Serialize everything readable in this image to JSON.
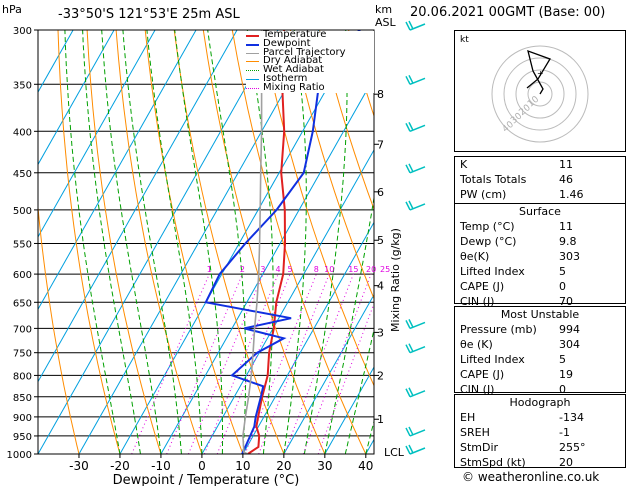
{
  "header": {
    "hpa_label": "hPa",
    "location": "-33°50'S  121°53'E  25m  ASL",
    "km_label": "km",
    "asl_label": "ASL",
    "datetime": "20.06.2021  00GMT  (Base: 00)"
  },
  "legend": [
    {
      "label": "Temperature",
      "color": "#e02020"
    },
    {
      "label": "Dewpoint",
      "color": "#1030e0"
    },
    {
      "label": "Parcel Trajectory",
      "color": "#a0a0a0"
    },
    {
      "label": "Dry Adiabat",
      "color": "#ff8c00"
    },
    {
      "label": "Wet Adiabat",
      "color": "#00a000"
    },
    {
      "label": "Isotherm",
      "color": "#00a0e0"
    },
    {
      "label": "Mixing Ratio",
      "color": "#e000e0"
    }
  ],
  "colors": {
    "temperature": "#e02020",
    "dewpoint": "#1030e0",
    "parcel": "#a0a0a0",
    "dry_adiabat": "#ff8c00",
    "wet_adiabat": "#00a000",
    "isotherm": "#00a0e0",
    "mixing_ratio": "#e000e0",
    "wind_barb": "#00c0c0"
  },
  "chart_data": {
    "type": "line",
    "xlabel": "Dewpoint / Temperature (°C)",
    "ylabel_right": "Mixing Ratio (g/kg)",
    "x_ticks": [
      -30,
      -20,
      -10,
      0,
      10,
      20,
      30,
      40
    ],
    "pressure_ticks": [
      300,
      350,
      400,
      450,
      500,
      550,
      600,
      650,
      700,
      750,
      800,
      850,
      900,
      950,
      1000
    ],
    "height_km_ticks": [
      {
        "km": "1",
        "p": 906
      },
      {
        "km": "2",
        "p": 800
      },
      {
        "km": "3",
        "p": 708
      },
      {
        "km": "4",
        "p": 620
      },
      {
        "km": "5",
        "p": 545
      },
      {
        "km": "6",
        "p": 475
      },
      {
        "km": "7",
        "p": 415
      },
      {
        "km": "8",
        "p": 360
      }
    ],
    "lcl_label": "LCL",
    "lcl_pressure": 995,
    "mixing_ratio_labels": [
      "1",
      "2",
      "3",
      "4",
      "5",
      "8",
      "10",
      "15",
      "20",
      "25"
    ],
    "series": [
      {
        "name": "Temperature",
        "points": [
          [
            1000,
            11.2
          ],
          [
            980,
            12.8
          ],
          [
            950,
            11.5
          ],
          [
            925,
            9.5
          ],
          [
            900,
            8.6
          ],
          [
            850,
            6.8
          ],
          [
            800,
            5.2
          ],
          [
            750,
            2.4
          ],
          [
            700,
            0.2
          ],
          [
            650,
            -2.8
          ],
          [
            600,
            -5.0
          ],
          [
            550,
            -8.8
          ],
          [
            500,
            -13.5
          ],
          [
            450,
            -19.5
          ],
          [
            400,
            -24.5
          ],
          [
            350,
            -31.5
          ],
          [
            300,
            -38.5
          ]
        ]
      },
      {
        "name": "Dewpoint",
        "points": [
          [
            1000,
            9.8
          ],
          [
            980,
            9.6
          ],
          [
            950,
            9.3
          ],
          [
            925,
            9.0
          ],
          [
            900,
            8.0
          ],
          [
            850,
            6.5
          ],
          [
            825,
            5.6
          ],
          [
            800,
            -3.5
          ],
          [
            750,
            -0.5
          ],
          [
            720,
            4.0
          ],
          [
            700,
            -7.0
          ],
          [
            680,
            3.0
          ],
          [
            650,
            -20.0
          ],
          [
            600,
            -20.5
          ],
          [
            550,
            -18.5
          ],
          [
            500,
            -15.5
          ],
          [
            450,
            -14.0
          ],
          [
            400,
            -17.5
          ],
          [
            350,
            -22.5
          ],
          [
            330,
            -25.0
          ],
          [
            300,
            -20.0
          ]
        ]
      },
      {
        "name": "Parcel Trajectory",
        "points": [
          [
            1000,
            11.2
          ],
          [
            995,
            10.0
          ],
          [
            950,
            7.5
          ],
          [
            900,
            5.5
          ],
          [
            850,
            3.5
          ],
          [
            800,
            1.2
          ],
          [
            750,
            -1.5
          ],
          [
            700,
            -4.5
          ],
          [
            650,
            -7.5
          ],
          [
            600,
            -11.0
          ],
          [
            550,
            -15.0
          ],
          [
            500,
            -19.5
          ],
          [
            450,
            -24.5
          ],
          [
            400,
            -30.0
          ],
          [
            350,
            -36.5
          ],
          [
            300,
            -44.0
          ]
        ]
      }
    ]
  },
  "hodograph": {
    "label": "kt",
    "ring_labels": [
      "10",
      "20",
      "30",
      "40"
    ]
  },
  "indices": [
    {
      "label": "K",
      "value": "11"
    },
    {
      "label": "Totals Totals",
      "value": "46"
    },
    {
      "label": "PW (cm)",
      "value": "1.46"
    }
  ],
  "surface": {
    "title": "Surface",
    "rows": [
      {
        "label": "Temp (°C)",
        "value": "11"
      },
      {
        "label": "Dewp (°C)",
        "value": "9.8"
      },
      {
        "label": "θe(K)",
        "value": "303"
      },
      {
        "label": "Lifted Index",
        "value": "5"
      },
      {
        "label": "CAPE (J)",
        "value": "0"
      },
      {
        "label": "CIN (J)",
        "value": "70"
      }
    ]
  },
  "most_unstable": {
    "title": "Most Unstable",
    "rows": [
      {
        "label": "Pressure (mb)",
        "value": "994"
      },
      {
        "label": "θe (K)",
        "value": "304"
      },
      {
        "label": "Lifted Index",
        "value": "5"
      },
      {
        "label": "CAPE (J)",
        "value": "19"
      },
      {
        "label": "CIN (J)",
        "value": "0"
      }
    ]
  },
  "hodograph_table": {
    "title": "Hodograph",
    "rows": [
      {
        "label": "EH",
        "value": "-134"
      },
      {
        "label": "SREH",
        "value": "-1"
      },
      {
        "label": "StmDir",
        "value": "255°"
      },
      {
        "label": "StmSpd (kt)",
        "value": "20"
      }
    ]
  },
  "copyright": "© weatheronline.co.uk"
}
